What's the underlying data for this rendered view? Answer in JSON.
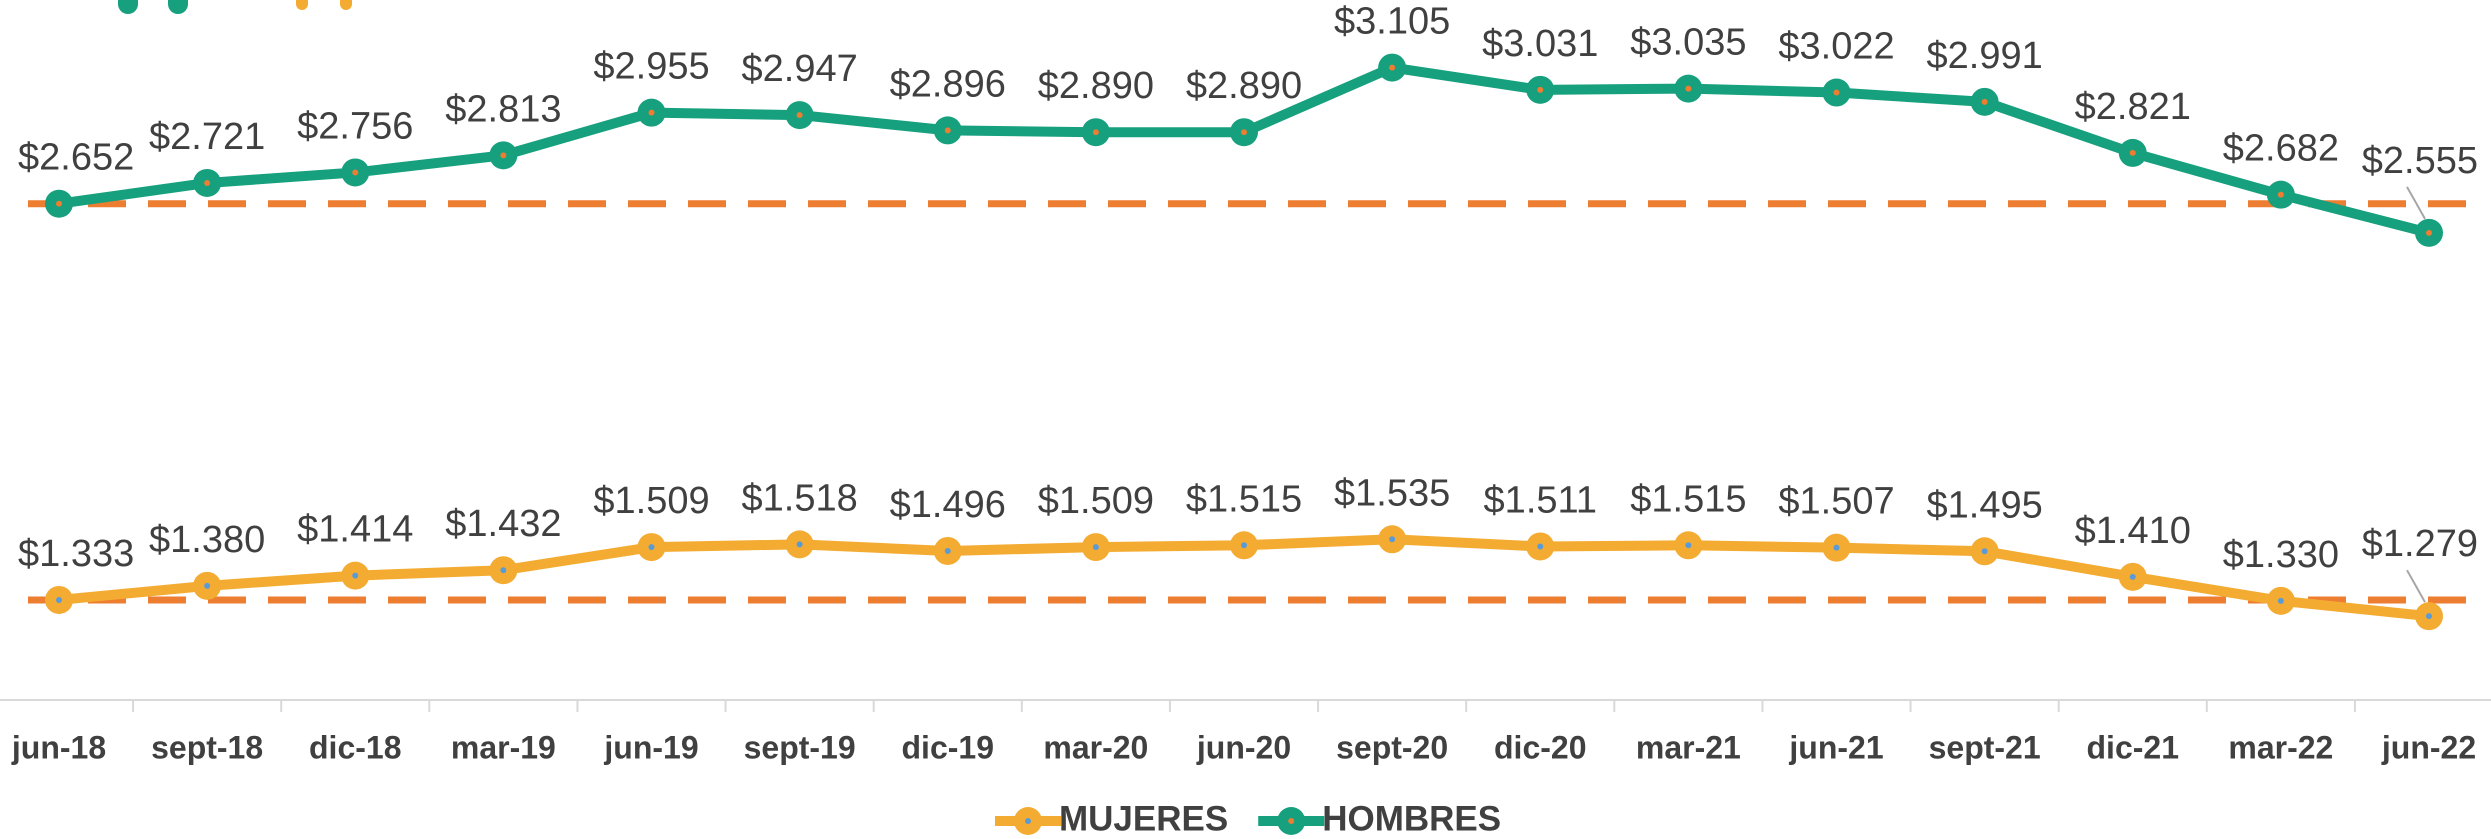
{
  "chart_data": {
    "type": "line",
    "categories": [
      "jun-18",
      "sept-18",
      "dic-18",
      "mar-19",
      "jun-19",
      "sept-19",
      "dic-19",
      "mar-20",
      "jun-20",
      "sept-20",
      "dic-20",
      "mar-21",
      "jun-21",
      "sept-21",
      "dic-21",
      "mar-22",
      "jun-22"
    ],
    "series": [
      {
        "name": "MUJERES",
        "color": "#f4ab32",
        "dot_color": "#5b9bd5",
        "values": [
          1333,
          1380,
          1414,
          1432,
          1509,
          1518,
          1496,
          1509,
          1515,
          1535,
          1511,
          1515,
          1507,
          1495,
          1410,
          1330,
          1279
        ],
        "value_labels": [
          "$1.333",
          "$1.380",
          "$1.414",
          "$1.432",
          "$1.509",
          "$1.518",
          "$1.496",
          "$1.509",
          "$1.515",
          "$1.535",
          "$1.511",
          "$1.515",
          "$1.507",
          "$1.495",
          "$1.410",
          "$1.330",
          "$1.279"
        ]
      },
      {
        "name": "HOMBRES",
        "color": "#16a07e",
        "dot_color": "#ed7d31",
        "values": [
          2652,
          2721,
          2756,
          2813,
          2955,
          2947,
          2896,
          2890,
          2890,
          3105,
          3031,
          3035,
          3022,
          2991,
          2821,
          2682,
          2555
        ],
        "value_labels": [
          "$2.652",
          "$2.721",
          "$2.756",
          "$2.813",
          "$2.955",
          "$2.947",
          "$2.896",
          "$2.890",
          "$2.890",
          "$3.105",
          "$3.031",
          "$3.035",
          "$3.022",
          "$2.991",
          "$2.821",
          "$2.682",
          "$2.555"
        ]
      }
    ],
    "reference_color": "#ed7d31",
    "ylim": [
      1000,
      3330
    ]
  }
}
